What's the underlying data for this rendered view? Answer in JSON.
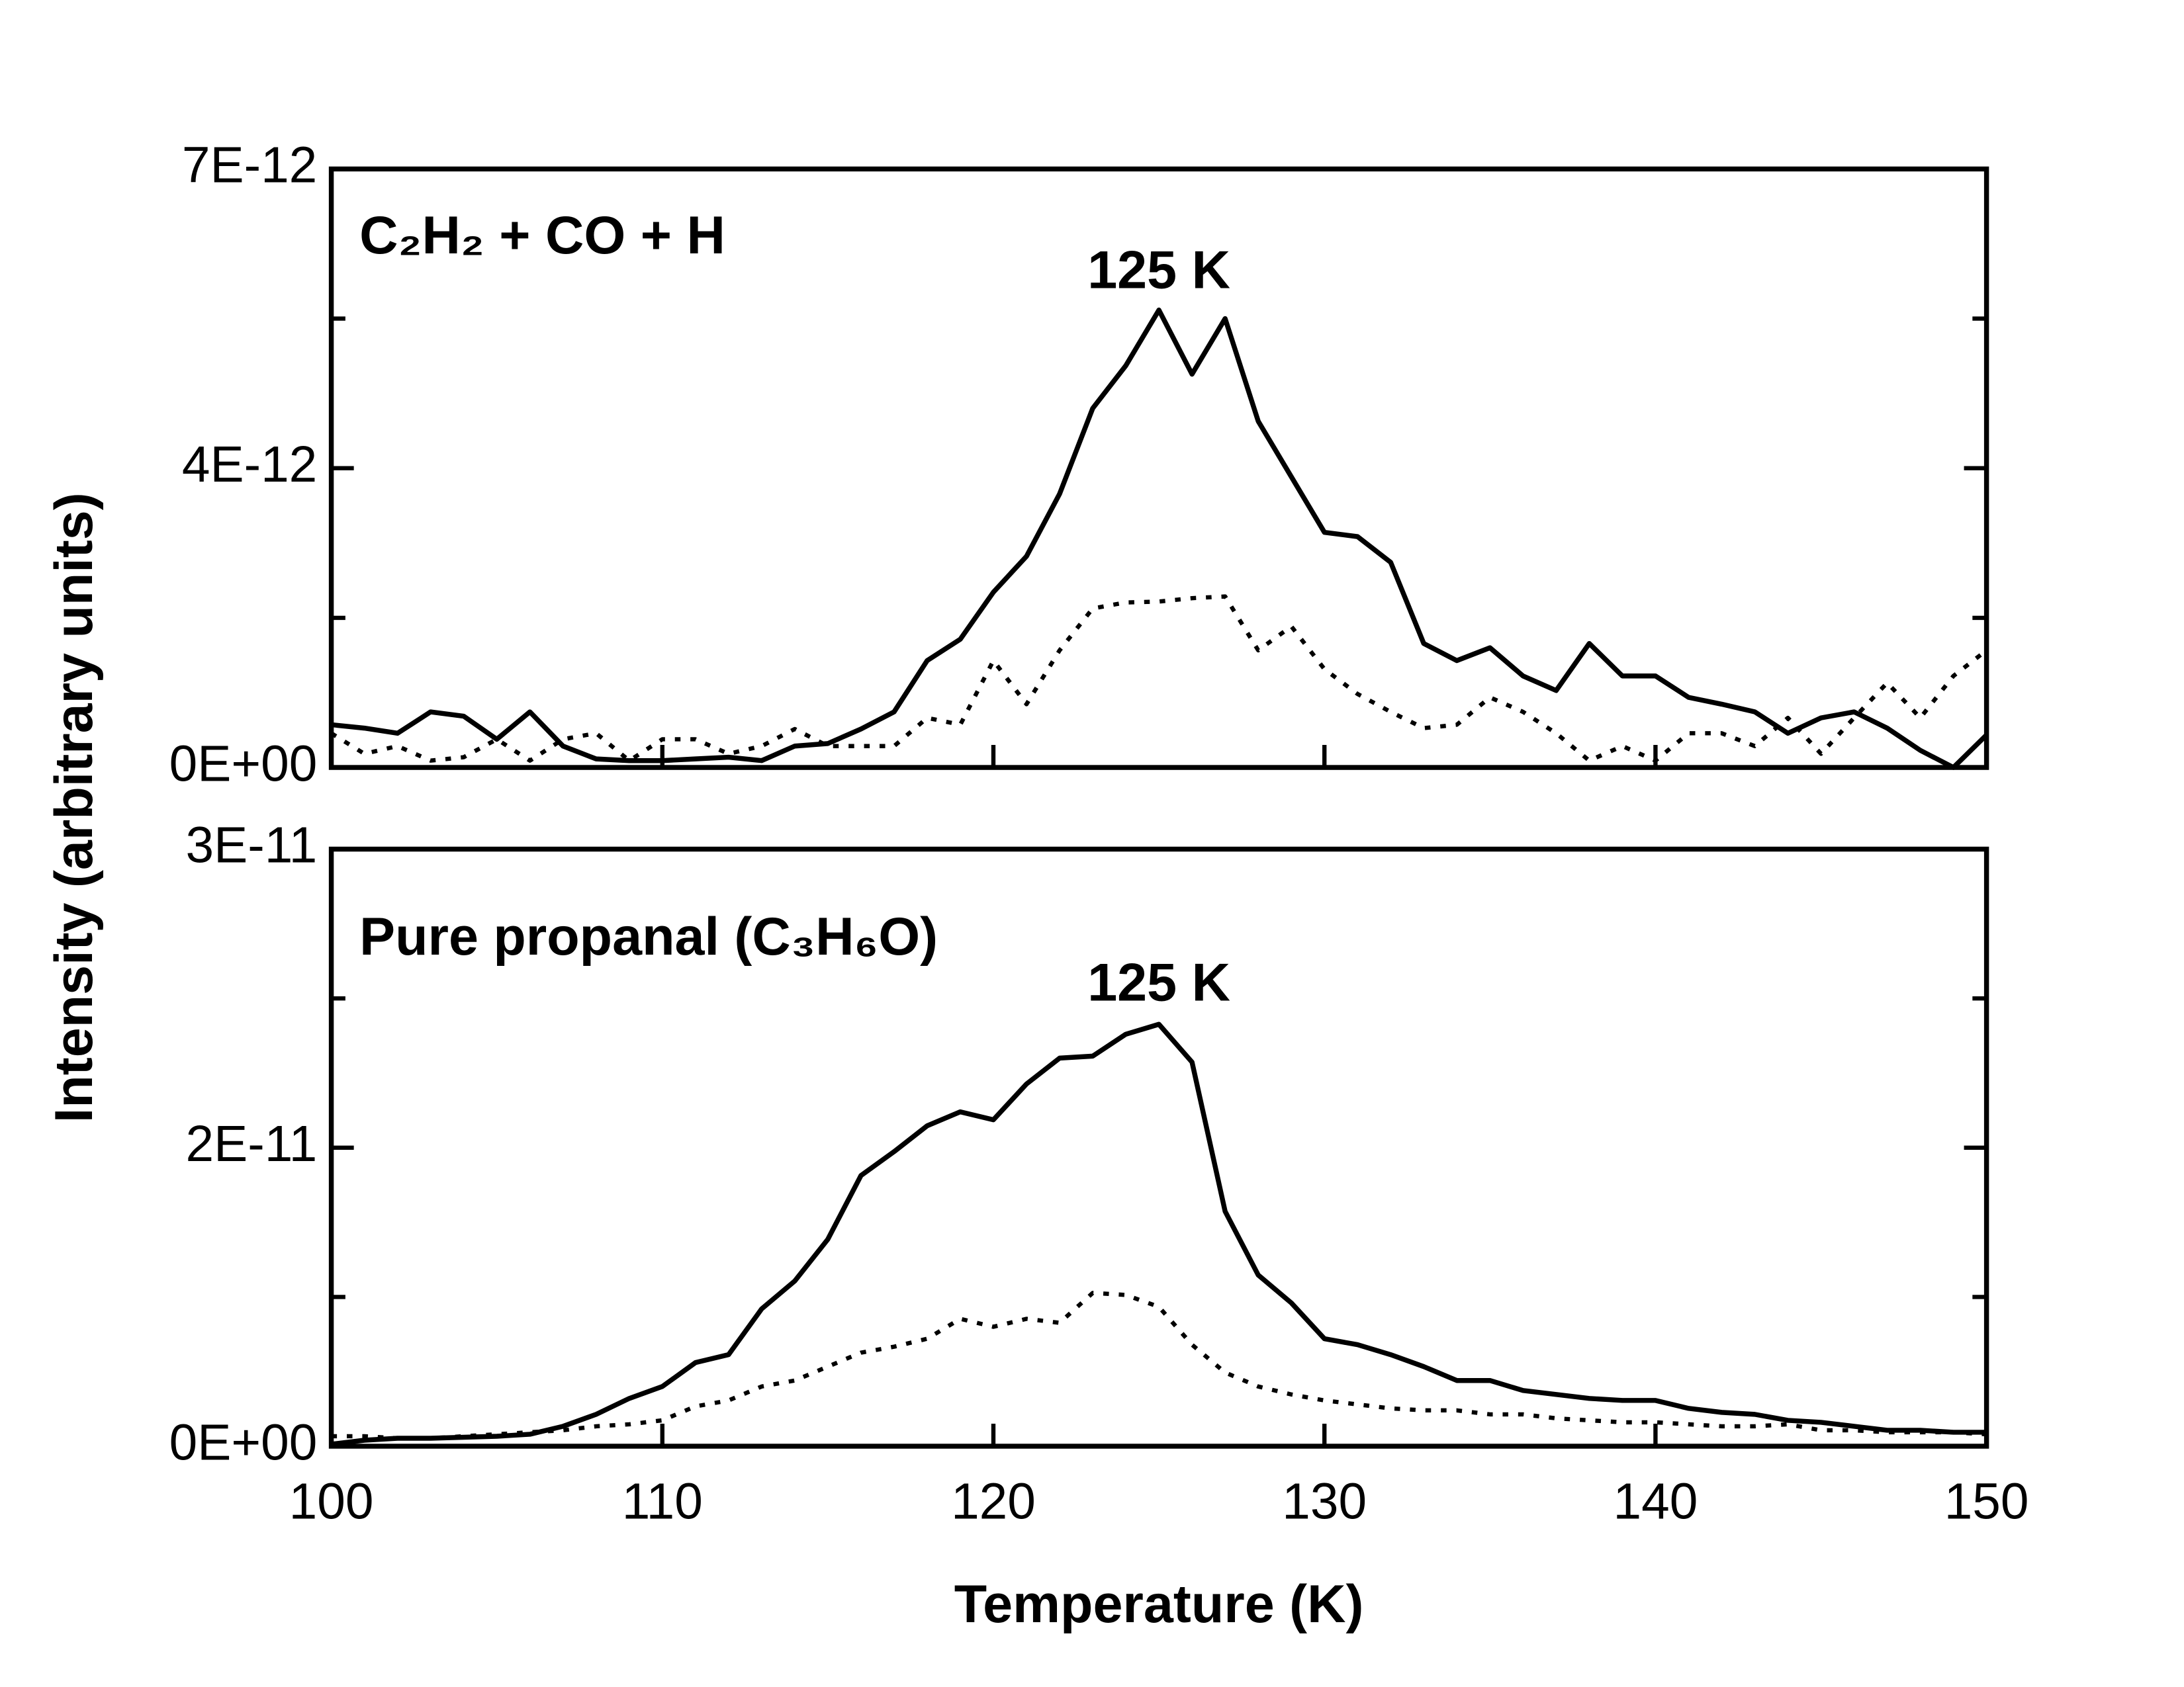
{
  "chart_data": [
    {
      "type": "line",
      "label": "C₂H₂ + CO + H",
      "ylabel": "Intensity (arbitrary units)",
      "annotation": {
        "text": "125 K",
        "x": 125,
        "y": 5.77e-12
      },
      "show_xtick_labels": false,
      "xlim": [
        100,
        150
      ],
      "xticks": [
        100,
        110,
        120,
        130,
        140,
        150
      ],
      "ylim": [
        0,
        7e-12
      ],
      "yticks": [
        {
          "value": 0,
          "label": "0E+00"
        },
        {
          "value": 3.5e-12,
          "label": "4E-12"
        },
        {
          "value": 7e-12,
          "label": "7E-12"
        }
      ],
      "yminor": [
        1.75e-12,
        5.25e-12
      ],
      "x": [
        100,
        101,
        102,
        103,
        104,
        105,
        106,
        107,
        108,
        109,
        110,
        111,
        112,
        113,
        114,
        115,
        116,
        117,
        118,
        119,
        120,
        121,
        122,
        123,
        124,
        125,
        126,
        127,
        128,
        129,
        130,
        131,
        132,
        133,
        134,
        135,
        136,
        137,
        138,
        139,
        140,
        141,
        142,
        143,
        144,
        145,
        146,
        147,
        148,
        149,
        150
      ],
      "series": [
        {
          "color": "#000000",
          "linestyle": "solid",
          "values": [
            5e-13,
            4.6e-13,
            4e-13,
            6.5e-13,
            6e-13,
            3.3e-13,
            6.5e-13,
            2.5e-13,
            1e-13,
            8e-14,
            8e-14,
            1e-13,
            1.2e-13,
            8e-14,
            2.5e-13,
            2.8e-13,
            4.5e-13,
            6.5e-13,
            1.25e-12,
            1.5e-12,
            2.05e-12,
            2.47e-12,
            3.2e-12,
            4.2e-12,
            4.7e-12,
            5.35e-12,
            4.6e-12,
            5.25e-12,
            4.05e-12,
            3.4e-12,
            2.75e-12,
            2.7e-12,
            2.4e-12,
            1.45e-12,
            1.25e-12,
            1.4e-12,
            1.07e-12,
            9e-13,
            1.45e-12,
            1.07e-12,
            1.07e-12,
            8.2e-13,
            7.4e-13,
            6.5e-13,
            4e-13,
            5.8e-13,
            6.5e-13,
            4.6e-13,
            2e-13,
            0,
            3.8e-13
          ]
        },
        {
          "color": "#000000",
          "linestyle": "dotted",
          "values": [
            4e-13,
            1.6e-13,
            2.5e-13,
            8e-14,
            1.2e-13,
            3.3e-13,
            8e-14,
            3.3e-13,
            4e-13,
            8e-14,
            3.3e-13,
            3.3e-13,
            1.6e-13,
            2.5e-13,
            4.5e-13,
            2.5e-13,
            2.5e-13,
            2.5e-13,
            5.8e-13,
            5e-13,
            1.25e-12,
            7.4e-13,
            1.37e-12,
            1.86e-12,
            1.93e-12,
            1.94e-12,
            1.98e-12,
            2e-12,
            1.37e-12,
            1.65e-12,
            1.15e-12,
            8.6e-13,
            6.5e-13,
            4.6e-13,
            5e-13,
            8.2e-13,
            6.5e-13,
            4e-13,
            8e-14,
            2.5e-13,
            8e-14,
            4e-13,
            4e-13,
            2.5e-13,
            5.8e-13,
            1.6e-13,
            5.8e-13,
            9.9e-13,
            5.8e-13,
            1.07e-12,
            1.37e-12
          ]
        }
      ]
    },
    {
      "type": "line",
      "label": "Pure propanal (C₃H₆O)",
      "xlabel": "Temperature (K)",
      "annotation": {
        "text": "125 K",
        "x": 125,
        "y": 2.31e-11
      },
      "show_xtick_labels": true,
      "xlim": [
        100,
        150
      ],
      "xticks": [
        100,
        110,
        120,
        130,
        140,
        150
      ],
      "ylim": [
        0,
        3e-11
      ],
      "yticks": [
        {
          "value": 0,
          "label": "0E+00"
        },
        {
          "value": 1.5e-11,
          "label": "2E-11"
        },
        {
          "value": 3e-11,
          "label": "3E-11"
        }
      ],
      "yminor": [
        7.5e-12,
        2.25e-11
      ],
      "x": [
        100,
        101,
        102,
        103,
        104,
        105,
        106,
        107,
        108,
        109,
        110,
        111,
        112,
        113,
        114,
        115,
        116,
        117,
        118,
        119,
        120,
        121,
        122,
        123,
        124,
        125,
        126,
        127,
        128,
        129,
        130,
        131,
        132,
        133,
        134,
        135,
        136,
        137,
        138,
        139,
        140,
        141,
        142,
        143,
        144,
        145,
        146,
        147,
        148,
        149,
        150
      ],
      "series": [
        {
          "color": "#000000",
          "linestyle": "solid",
          "values": [
            1e-13,
            3e-13,
            4e-13,
            4e-13,
            4.5e-13,
            5e-13,
            6e-13,
            1e-12,
            1.6e-12,
            2.4e-12,
            3e-12,
            4.2e-12,
            4.6e-12,
            6.9e-12,
            8.3e-12,
            1.04e-11,
            1.36e-11,
            1.48e-11,
            1.61e-11,
            1.68e-11,
            1.64e-11,
            1.82e-11,
            1.95e-11,
            1.96e-11,
            2.07e-11,
            2.12e-11,
            1.93e-11,
            1.18e-11,
            8.6e-12,
            7.2e-12,
            5.4e-12,
            5.1e-12,
            4.6e-12,
            4e-12,
            3.3e-12,
            3.3e-12,
            2.8e-12,
            2.6e-12,
            2.4e-12,
            2.3e-12,
            2.3e-12,
            1.9e-12,
            1.7e-12,
            1.6e-12,
            1.3e-12,
            1.2e-12,
            1e-12,
            8e-13,
            8e-13,
            7e-13,
            7e-13
          ]
        },
        {
          "color": "#000000",
          "linestyle": "dotted",
          "values": [
            5e-13,
            5e-13,
            4e-13,
            4e-13,
            5e-13,
            6e-13,
            7e-13,
            8e-13,
            1e-12,
            1.1e-12,
            1.3e-12,
            2e-12,
            2.3e-12,
            3e-12,
            3.3e-12,
            4e-12,
            4.7e-12,
            5e-12,
            5.4e-12,
            6.4e-12,
            6e-12,
            6.4e-12,
            6.2e-12,
            7.7e-12,
            7.6e-12,
            7e-12,
            5.1e-12,
            3.7e-12,
            3e-12,
            2.6e-12,
            2.3e-12,
            2.1e-12,
            1.9e-12,
            1.8e-12,
            1.8e-12,
            1.6e-12,
            1.6e-12,
            1.4e-12,
            1.3e-12,
            1.2e-12,
            1.2e-12,
            1.1e-12,
            1e-12,
            1e-12,
            1.1e-12,
            8e-13,
            8e-13,
            7e-13,
            7e-13,
            7e-13,
            6e-13
          ]
        }
      ]
    }
  ]
}
